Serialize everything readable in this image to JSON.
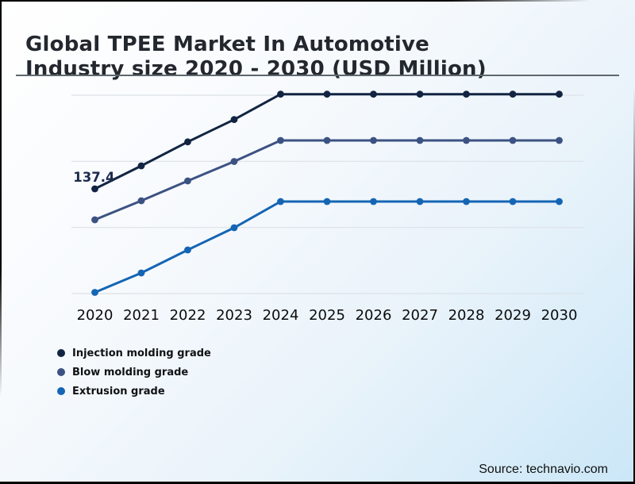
{
  "header": {
    "title_line1": "Global TPEE Market In Automotive",
    "title_line2": "Industry size 2020 - 2030 (USD Million)"
  },
  "footer": {
    "source": "Source: technavio.com"
  },
  "colors": {
    "background_start": "#ffffff",
    "background_end": "#cbe7f8",
    "title_text": "#23272e",
    "divider": "#5f676e",
    "gridline": "#dce1e7",
    "axis_label": "#0b0c0d",
    "annotation_text": "#1b2a4c",
    "injection_grade": "#122442",
    "blow_grade": "#3c5282",
    "extrusion_grade": "#1465b4"
  },
  "chart_data": {
    "type": "line",
    "title": "Global TPEE Market In Automotive Industry size 2020 - 2030 (USD Million)",
    "xlabel": "",
    "ylabel": "",
    "x": [
      2020,
      2021,
      2022,
      2023,
      2024,
      2025,
      2026,
      2027,
      2028,
      2029,
      2030
    ],
    "series": [
      {
        "name": "Injection molding grade",
        "color": "#122442",
        "values": [
          137.4,
          154.8,
          172.9,
          189.8,
          209.0,
          209.0,
          209.0,
          209.0,
          209.0,
          209.0,
          209.0
        ]
      },
      {
        "name": "Blow molding grade",
        "color": "#3c5282",
        "values": [
          114.0,
          128.4,
          143.4,
          158.1,
          174.0,
          174.0,
          174.0,
          174.0,
          174.0,
          174.0,
          174.0
        ]
      },
      {
        "name": "Extrusion grade",
        "color": "#1465b4",
        "values": [
          59.1,
          73.8,
          91.2,
          108.0,
          127.8,
          127.8,
          127.8,
          127.8,
          127.8,
          127.8,
          127.8
        ]
      }
    ],
    "annotation": {
      "text": "137.4",
      "series": "Injection molding grade",
      "year": 2020,
      "value": 137.4
    },
    "ylim": [
      50,
      215
    ],
    "grid": "horizontal",
    "gridline_count": 4,
    "legend_position": "bottom-left",
    "marker": "circle"
  }
}
